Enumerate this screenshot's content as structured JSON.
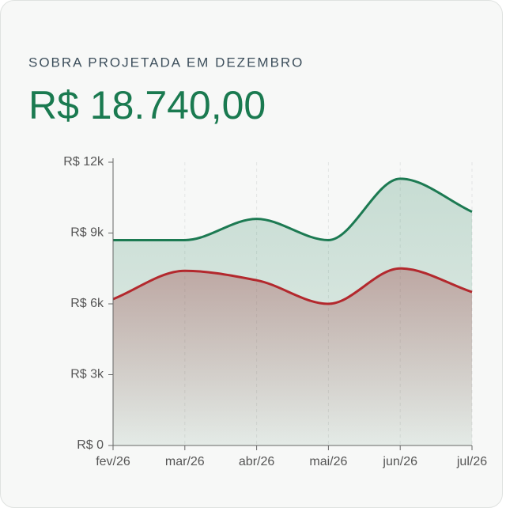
{
  "header": {
    "title": "SOBRA PROJETADA EM DEZEMBRO",
    "value": "R$ 18.740,00"
  },
  "chart_data": {
    "type": "area",
    "categories": [
      "fev/26",
      "mar/26",
      "abr/26",
      "mai/26",
      "jun/26",
      "jul/26"
    ],
    "series": [
      {
        "color": "#1c7a52",
        "values": [
          8700,
          8700,
          9600,
          8700,
          11300,
          9900
        ]
      },
      {
        "color": "#b3282d",
        "values": [
          6200,
          7400,
          7000,
          6000,
          7500,
          6500
        ]
      }
    ],
    "ylim": [
      0,
      12000
    ],
    "yticks": [
      {
        "value": 0,
        "label": "R$ 0"
      },
      {
        "value": 3000,
        "label": "R$ 3k"
      },
      {
        "value": 6000,
        "label": "R$ 6k"
      },
      {
        "value": 9000,
        "label": "R$ 9k"
      },
      {
        "value": 12000,
        "label": "R$ 12k"
      }
    ],
    "grid": true
  }
}
